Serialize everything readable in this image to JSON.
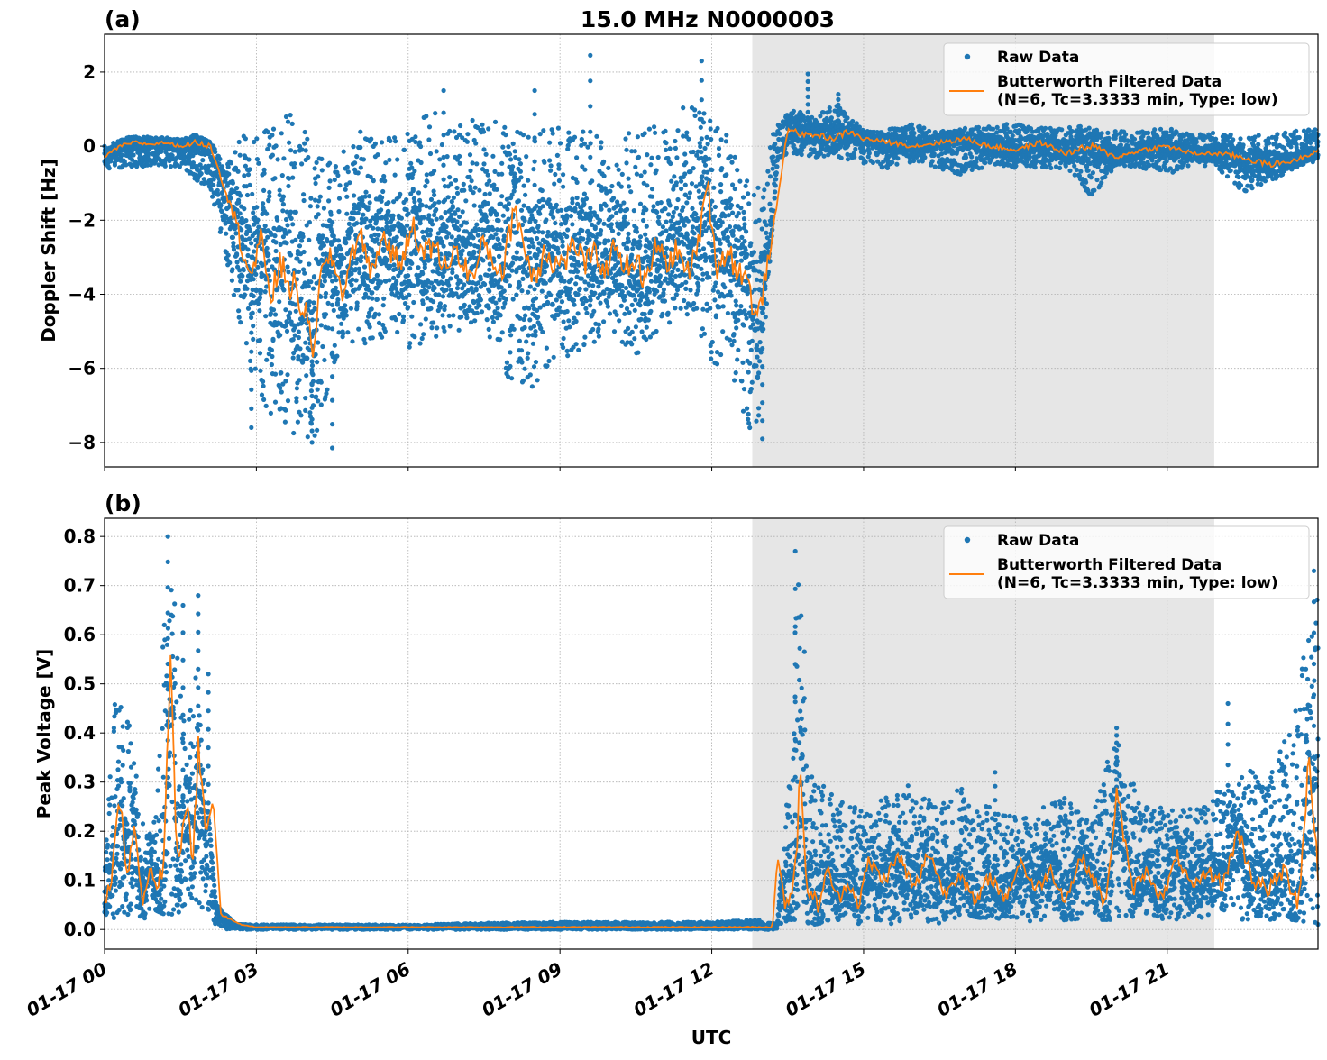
{
  "chart_data": [
    {
      "type": "scatter+line",
      "panel_label": "(a)",
      "title": "15.0 MHz N0000003",
      "xlabel": "",
      "ylabel": "Doppler Shift [Hz]",
      "ylim": [
        -8.66,
        3.02
      ],
      "xlim_hours": [
        0,
        24
      ],
      "yticks": [
        2,
        0,
        -2,
        -4,
        -6,
        -8
      ],
      "ytick_labels": [
        "2",
        "0",
        "−2",
        "−4",
        "−6",
        "−8"
      ],
      "grid": true,
      "legend_position": "upper-right",
      "legend": [
        "Raw Data",
        "Butterworth Filtered Data",
        "(N=6, Tc=3.3333 min, Type: low)"
      ],
      "shaded_span_hours": [
        12.8,
        21.93
      ],
      "series": [
        {
          "name": "Raw Data",
          "style": "scatter",
          "color": "#1f77b4",
          "envelope_x_hours": [
            0,
            0.5,
            1.0,
            1.5,
            1.8,
            2.1,
            2.4,
            2.7,
            3.0,
            3.3,
            3.6,
            3.9,
            4.2,
            4.5,
            4.8,
            5.1,
            5.4,
            5.7,
            6.0,
            6.5,
            7.0,
            7.5,
            8.0,
            8.5,
            9.0,
            9.5,
            10.0,
            10.5,
            11.0,
            11.5,
            12.0,
            12.3,
            12.6,
            12.9,
            13.1,
            13.3,
            13.6,
            14.0,
            14.5,
            15.0,
            15.5,
            16.0,
            16.5,
            17.0,
            17.5,
            18.0,
            18.5,
            19.0,
            19.5,
            20.0,
            20.5,
            21.0,
            21.5,
            22.0,
            22.5,
            23.0,
            23.5,
            24.0
          ],
          "envelope_upper": [
            0.0,
            0.25,
            0.25,
            0.2,
            0.3,
            0.1,
            -0.6,
            0.6,
            0.5,
            0.4,
            0.9,
            0.8,
            0.0,
            -0.5,
            0.0,
            0.5,
            0.0,
            0.5,
            0.4,
            1.0,
            0.6,
            0.8,
            0.5,
            0.4,
            0.6,
            0.4,
            0.2,
            0.5,
            0.6,
            1.2,
            0.8,
            0.5,
            -1.0,
            -0.8,
            0.1,
            0.6,
            1.0,
            0.8,
            1.2,
            0.5,
            0.5,
            0.6,
            0.4,
            0.5,
            0.6,
            0.6,
            0.5,
            0.5,
            0.6,
            0.4,
            0.4,
            0.5,
            0.3,
            0.4,
            0.3,
            0.3,
            0.4,
            0.5
          ],
          "envelope_lower": [
            -0.6,
            -0.6,
            -0.5,
            -0.6,
            -0.9,
            -1.2,
            -3.0,
            -5.0,
            -6.8,
            -7.3,
            -7.5,
            -8.1,
            -7.8,
            -6.0,
            -5.2,
            -5.5,
            -5.5,
            -4.8,
            -5.6,
            -5.2,
            -5.0,
            -4.8,
            -6.5,
            -6.9,
            -5.8,
            -5.5,
            -5.0,
            -5.7,
            -5.0,
            -4.5,
            -5.8,
            -6.2,
            -7.3,
            -7.9,
            -4.0,
            -0.3,
            -0.2,
            -0.3,
            -0.3,
            -0.5,
            -0.6,
            -0.4,
            -0.6,
            -0.8,
            -0.5,
            -0.6,
            -0.6,
            -0.6,
            -1.4,
            -0.5,
            -0.6,
            -0.8,
            -0.5,
            -0.6,
            -1.3,
            -1.0,
            -0.6,
            -0.4
          ],
          "peak_outliers": [
            [
              9.6,
              2.45
            ],
            [
              11.8,
              2.3
            ],
            [
              13.9,
              1.95
            ],
            [
              8.5,
              1.5
            ],
            [
              6.7,
              1.5
            ],
            [
              14.5,
              1.4
            ],
            [
              4.5,
              -8.15
            ],
            [
              4.1,
              -8.0
            ],
            [
              2.9,
              -7.6
            ],
            [
              13.0,
              -7.9
            ]
          ]
        },
        {
          "name": "Butterworth Filtered Data (N=6, Tc=3.3333 min, Type: low)",
          "style": "line",
          "color": "#ff7f0e",
          "x_hours": [
            0,
            0.3,
            0.6,
            0.9,
            1.2,
            1.5,
            1.8,
            2.1,
            2.3,
            2.5,
            2.7,
            2.9,
            3.1,
            3.3,
            3.5,
            3.7,
            3.9,
            4.1,
            4.3,
            4.5,
            4.7,
            4.9,
            5.1,
            5.3,
            5.5,
            5.7,
            5.9,
            6.1,
            6.3,
            6.5,
            6.7,
            6.9,
            7.1,
            7.3,
            7.5,
            7.7,
            7.9,
            8.1,
            8.3,
            8.5,
            8.7,
            8.9,
            9.1,
            9.3,
            9.5,
            9.7,
            9.9,
            10.1,
            10.3,
            10.5,
            10.7,
            10.9,
            11.1,
            11.3,
            11.5,
            11.7,
            11.9,
            12.1,
            12.3,
            12.5,
            12.7,
            12.9,
            13.1,
            13.3,
            13.5,
            13.8,
            14.1,
            14.4,
            14.7,
            15.0,
            15.5,
            16.0,
            16.5,
            17.0,
            17.5,
            18.0,
            18.5,
            19.0,
            19.5,
            20.0,
            20.5,
            21.0,
            21.5,
            22.0,
            22.5,
            23.0,
            23.5,
            24.0
          ],
          "y": [
            -0.3,
            0.0,
            0.1,
            0.05,
            0.1,
            0.0,
            0.1,
            0.0,
            -0.8,
            -1.6,
            -2.6,
            -3.5,
            -2.6,
            -4.0,
            -3.2,
            -3.8,
            -4.2,
            -5.5,
            -3.4,
            -3.0,
            -4.0,
            -2.8,
            -2.5,
            -3.5,
            -2.3,
            -3.0,
            -3.1,
            -2.0,
            -3.0,
            -2.6,
            -3.3,
            -2.8,
            -3.2,
            -3.6,
            -2.5,
            -3.2,
            -3.3,
            -1.5,
            -2.8,
            -3.6,
            -2.7,
            -3.2,
            -3.1,
            -2.6,
            -3.2,
            -2.9,
            -3.4,
            -2.6,
            -3.3,
            -3.0,
            -3.8,
            -2.6,
            -3.2,
            -2.8,
            -3.4,
            -3.0,
            -0.8,
            -3.3,
            -2.8,
            -3.3,
            -3.6,
            -4.8,
            -3.2,
            -1.5,
            0.5,
            0.3,
            0.3,
            0.2,
            0.4,
            0.2,
            0.1,
            0.0,
            0.1,
            0.2,
            0.0,
            -0.1,
            0.1,
            -0.2,
            0.0,
            -0.3,
            -0.1,
            0.0,
            -0.2,
            -0.2,
            -0.3,
            -0.5,
            -0.4,
            -0.1
          ]
        }
      ]
    },
    {
      "type": "scatter+line",
      "panel_label": "(b)",
      "title": "",
      "xlabel": "UTC",
      "ylabel": "Peak Voltage [V]",
      "ylim": [
        -0.04,
        0.837
      ],
      "xlim_hours": [
        0,
        24
      ],
      "yticks": [
        0.8,
        0.7,
        0.6,
        0.5,
        0.4,
        0.3,
        0.2,
        0.1,
        0.0
      ],
      "ytick_labels": [
        "0.8",
        "0.7",
        "0.6",
        "0.5",
        "0.4",
        "0.3",
        "0.2",
        "0.1",
        "0.0"
      ],
      "xticks_hours": [
        0,
        3,
        6,
        9,
        12,
        15,
        18,
        21
      ],
      "xtick_labels": [
        "01-17 00",
        "01-17 03",
        "01-17 06",
        "01-17 09",
        "01-17 12",
        "01-17 15",
        "01-17 18",
        "01-17 21"
      ],
      "grid": true,
      "legend_position": "upper-right",
      "legend": [
        "Raw Data",
        "Butterworth Filtered Data",
        "(N=6, Tc=3.3333 min, Type: low)"
      ],
      "shaded_span_hours": [
        12.8,
        21.93
      ],
      "series": [
        {
          "name": "Raw Data",
          "style": "scatter",
          "color": "#1f77b4",
          "envelope_x_hours": [
            0,
            0.2,
            0.4,
            0.6,
            0.8,
            1.0,
            1.2,
            1.4,
            1.6,
            1.8,
            2.0,
            2.2,
            2.4,
            2.6,
            3.0,
            6.0,
            8.5,
            12.0,
            12.9,
            13.3,
            13.5,
            13.7,
            14.0,
            14.5,
            15.0,
            15.5,
            16.0,
            16.5,
            17.0,
            17.5,
            18.0,
            18.5,
            19.0,
            19.5,
            20.0,
            20.5,
            21.0,
            21.5,
            22.0,
            22.5,
            23.0,
            23.5,
            24.0
          ],
          "envelope_upper": [
            0.15,
            0.47,
            0.47,
            0.35,
            0.18,
            0.26,
            0.79,
            0.66,
            0.4,
            0.52,
            0.3,
            0.05,
            0.03,
            0.01,
            0.01,
            0.01,
            0.015,
            0.015,
            0.02,
            0.01,
            0.3,
            0.76,
            0.32,
            0.26,
            0.25,
            0.28,
            0.3,
            0.25,
            0.3,
            0.25,
            0.23,
            0.25,
            0.27,
            0.22,
            0.41,
            0.25,
            0.25,
            0.25,
            0.3,
            0.35,
            0.3,
            0.45,
            0.73
          ],
          "envelope_lower": [
            0.02,
            0.02,
            0.03,
            0.03,
            0.02,
            0.04,
            0.03,
            0.02,
            0.05,
            0.05,
            0.03,
            0.01,
            0.0,
            0.0,
            0.0,
            0.0,
            0.0,
            0.0,
            0.0,
            0.0,
            0.02,
            0.02,
            0.01,
            0.02,
            0.01,
            0.01,
            0.02,
            0.01,
            0.03,
            0.02,
            0.02,
            0.01,
            0.02,
            0.02,
            0.02,
            0.03,
            0.02,
            0.02,
            0.03,
            0.02,
            0.02,
            0.02,
            0.01
          ],
          "peak_outliers": [
            [
              1.25,
              0.8
            ],
            [
              1.55,
              0.66
            ],
            [
              1.85,
              0.68
            ],
            [
              2.05,
              0.52
            ],
            [
              13.65,
              0.77
            ],
            [
              20.0,
              0.41
            ],
            [
              22.2,
              0.46
            ],
            [
              23.9,
              0.73
            ],
            [
              17.6,
              0.32
            ]
          ]
        },
        {
          "name": "Butterworth Filtered Data (N=6, Tc=3.3333 min, Type: low)",
          "style": "line",
          "color": "#ff7f0e",
          "x_hours": [
            0,
            0.15,
            0.3,
            0.45,
            0.6,
            0.75,
            0.9,
            1.05,
            1.2,
            1.3,
            1.45,
            1.6,
            1.75,
            1.85,
            2.0,
            2.15,
            2.3,
            2.5,
            2.7,
            3.0,
            6.0,
            9.0,
            12.0,
            13.2,
            13.3,
            13.45,
            13.6,
            13.75,
            13.9,
            14.1,
            14.3,
            14.5,
            14.7,
            14.9,
            15.1,
            15.4,
            15.7,
            16.0,
            16.3,
            16.6,
            16.9,
            17.2,
            17.5,
            17.8,
            18.1,
            18.4,
            18.7,
            19.0,
            19.3,
            19.6,
            19.8,
            20.0,
            20.3,
            20.6,
            20.9,
            21.2,
            21.5,
            21.8,
            22.1,
            22.4,
            22.7,
            23.0,
            23.3,
            23.6,
            23.8,
            24.0
          ],
          "y": [
            0.05,
            0.12,
            0.27,
            0.1,
            0.22,
            0.05,
            0.13,
            0.06,
            0.2,
            0.57,
            0.1,
            0.27,
            0.13,
            0.38,
            0.2,
            0.26,
            0.03,
            0.02,
            0.01,
            0.005,
            0.005,
            0.005,
            0.005,
            0.005,
            0.15,
            0.05,
            0.09,
            0.29,
            0.08,
            0.05,
            0.12,
            0.06,
            0.1,
            0.05,
            0.14,
            0.1,
            0.15,
            0.08,
            0.16,
            0.07,
            0.12,
            0.05,
            0.11,
            0.06,
            0.14,
            0.08,
            0.12,
            0.06,
            0.15,
            0.09,
            0.05,
            0.29,
            0.08,
            0.12,
            0.06,
            0.15,
            0.08,
            0.12,
            0.09,
            0.2,
            0.1,
            0.08,
            0.12,
            0.06,
            0.35,
            0.1
          ]
        }
      ]
    }
  ]
}
